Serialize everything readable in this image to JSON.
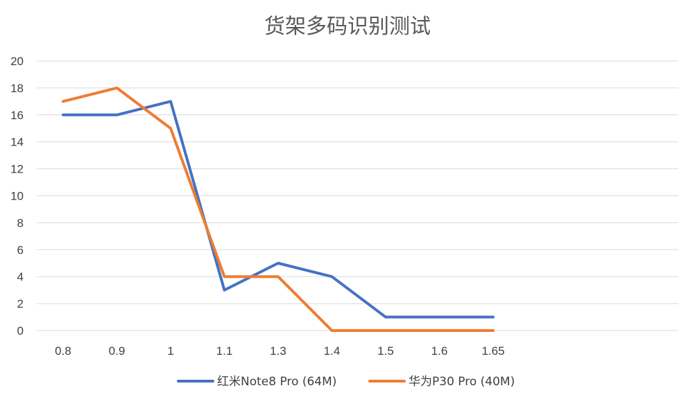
{
  "chart_data": {
    "type": "line",
    "title": "货架多码识别测试",
    "xlabel": "",
    "ylabel": "",
    "categories": [
      "0.8",
      "0.9",
      "1",
      "1.1",
      "1.3",
      "1.4",
      "1.5",
      "1.6",
      "1.65"
    ],
    "y_ticks": [
      "0",
      "2",
      "4",
      "6",
      "8",
      "10",
      "12",
      "14",
      "16",
      "18",
      "20"
    ],
    "ylim": [
      0,
      20
    ],
    "grid": true,
    "legend_position": "bottom",
    "series": [
      {
        "name": "红米Note8 Pro (64M)",
        "color": "#4472C4",
        "values": [
          16,
          16,
          17,
          3,
          5,
          4,
          1,
          1,
          1
        ]
      },
      {
        "name": "华为P30 Pro (40M)",
        "color": "#ED7D31",
        "values": [
          17,
          18,
          15,
          4,
          4,
          0,
          0,
          0,
          0
        ]
      }
    ]
  }
}
